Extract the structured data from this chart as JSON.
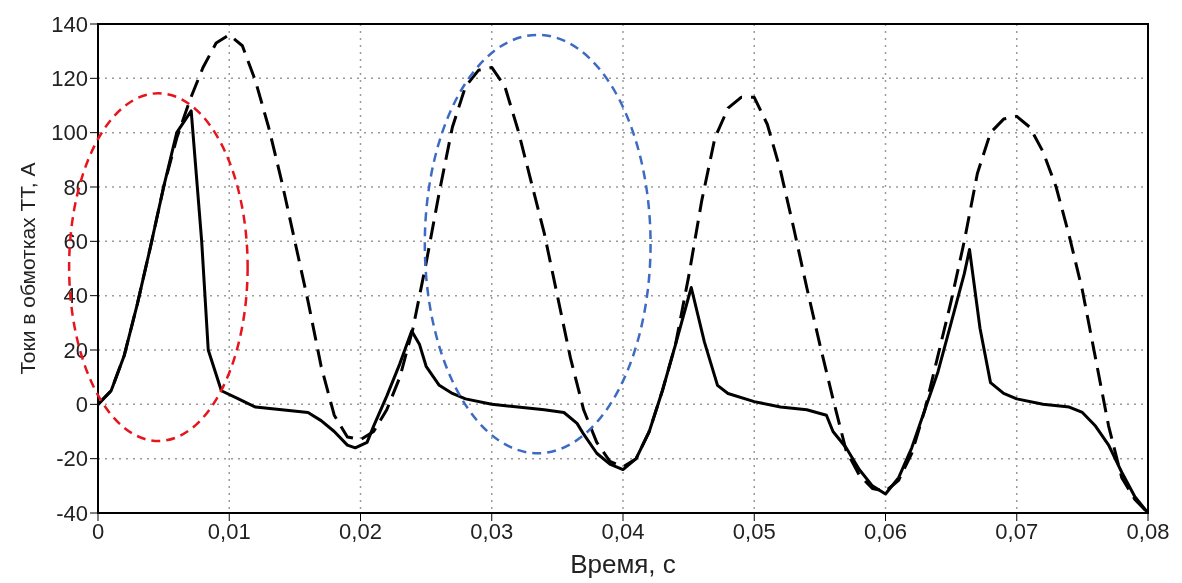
{
  "chart_data": {
    "type": "line",
    "xlabel": "Время, с",
    "ylabel": "Токи в обмотках ТТ, А",
    "xlim": [
      0,
      0.08
    ],
    "ylim": [
      -40,
      140
    ],
    "xticks": [
      {
        "value": 0,
        "label": "0"
      },
      {
        "value": 0.01,
        "label": "0,01"
      },
      {
        "value": 0.02,
        "label": "0,02"
      },
      {
        "value": 0.03,
        "label": "0,03"
      },
      {
        "value": 0.04,
        "label": "0,04"
      },
      {
        "value": 0.05,
        "label": "0,05"
      },
      {
        "value": 0.06,
        "label": "0,06"
      },
      {
        "value": 0.07,
        "label": "0,07"
      },
      {
        "value": 0.08,
        "label": "0,08"
      }
    ],
    "yticks": [
      -40,
      -20,
      0,
      20,
      40,
      60,
      80,
      100,
      120,
      140
    ],
    "grid": true,
    "marker": "none",
    "series": [
      {
        "color": "#000000",
        "line_style": "dashed",
        "x": [
          0,
          0.001,
          0.002,
          0.003,
          0.004,
          0.005,
          0.006,
          0.007,
          0.008,
          0.009,
          0.01,
          0.011,
          0.012,
          0.013,
          0.014,
          0.015,
          0.016,
          0.017,
          0.018,
          0.019,
          0.02,
          0.021,
          0.022,
          0.023,
          0.024,
          0.025,
          0.026,
          0.027,
          0.028,
          0.029,
          0.03,
          0.031,
          0.032,
          0.033,
          0.034,
          0.035,
          0.036,
          0.037,
          0.038,
          0.039,
          0.04,
          0.041,
          0.042,
          0.043,
          0.044,
          0.045,
          0.046,
          0.047,
          0.048,
          0.049,
          0.05,
          0.051,
          0.052,
          0.053,
          0.054,
          0.055,
          0.056,
          0.057,
          0.058,
          0.059,
          0.06,
          0.061,
          0.062,
          0.063,
          0.064,
          0.065,
          0.066,
          0.067,
          0.068,
          0.069,
          0.07,
          0.071,
          0.072,
          0.073,
          0.074,
          0.075,
          0.076,
          0.077,
          0.078,
          0.079,
          0.08
        ],
        "values": [
          0,
          5,
          18,
          37,
          58,
          80,
          98,
          112,
          124,
          133,
          136,
          132,
          119,
          102,
          82,
          60,
          38,
          14,
          -4,
          -12,
          -13,
          -10,
          -2,
          10,
          28,
          52,
          78,
          102,
          117,
          123,
          124,
          117,
          101,
          82,
          63,
          40,
          17,
          -2,
          -14,
          -21,
          -23,
          -20,
          -10,
          5,
          22,
          47,
          75,
          98,
          109,
          113,
          113,
          103,
          86,
          65,
          43,
          22,
          2,
          -17,
          -26,
          -31,
          -32,
          -28,
          -18,
          -2,
          18,
          38,
          60,
          85,
          100,
          105,
          106,
          102,
          93,
          80,
          62,
          42,
          17,
          -8,
          -27,
          -35,
          -40
        ]
      },
      {
        "color": "#000000",
        "line_style": "solid",
        "x": [
          0,
          0.001,
          0.002,
          0.003,
          0.004,
          0.005,
          0.006,
          0.0071,
          0.0079,
          0.0084,
          0.0094,
          0.0107,
          0.012,
          0.014,
          0.016,
          0.017,
          0.018,
          0.019,
          0.0196,
          0.0205,
          0.021,
          0.022,
          0.023,
          0.0239,
          0.0245,
          0.025,
          0.026,
          0.027,
          0.028,
          0.03,
          0.032,
          0.034,
          0.0355,
          0.0365,
          0.037,
          0.038,
          0.039,
          0.04,
          0.041,
          0.042,
          0.043,
          0.044,
          0.0452,
          0.0462,
          0.0472,
          0.048,
          0.05,
          0.052,
          0.054,
          0.0555,
          0.056,
          0.057,
          0.058,
          0.059,
          0.06,
          0.061,
          0.062,
          0.063,
          0.064,
          0.065,
          0.066,
          0.0664,
          0.0672,
          0.068,
          0.069,
          0.07,
          0.072,
          0.074,
          0.075,
          0.076,
          0.077,
          0.078,
          0.079,
          0.08
        ],
        "values": [
          0,
          5,
          18,
          37,
          58,
          80,
          100,
          108,
          60,
          20,
          5,
          2,
          -1,
          -2,
          -3,
          -6,
          -10,
          -15,
          -16,
          -14,
          -8,
          3,
          15,
          27,
          22,
          14,
          7,
          4,
          2,
          0,
          -1,
          -2,
          -3,
          -7,
          -11,
          -18,
          -22,
          -24,
          -20,
          -10,
          5,
          22,
          43,
          23,
          7,
          4,
          1,
          -1,
          -2,
          -4,
          -10,
          -16,
          -24,
          -30,
          -33,
          -27,
          -16,
          -2,
          12,
          30,
          48,
          57,
          28,
          8,
          4,
          2,
          0,
          -1,
          -3,
          -8,
          -15,
          -25,
          -34,
          -40
        ]
      }
    ]
  }
}
